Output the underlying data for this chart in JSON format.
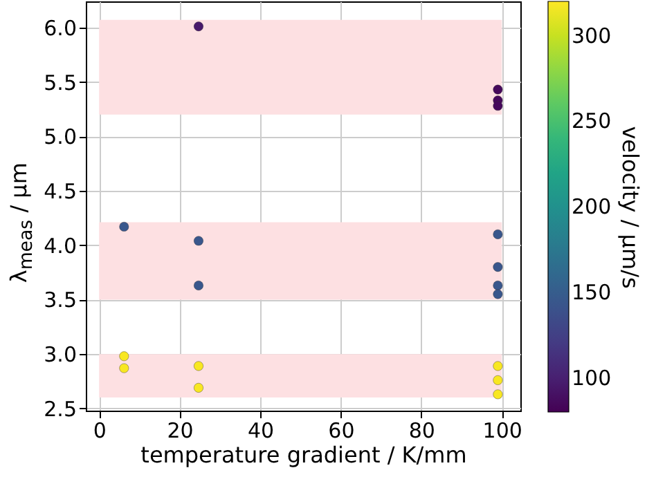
{
  "chart_data": {
    "type": "scatter",
    "xlabel": "temperature gradient / K/mm",
    "ylabel": "λ$_{meas}$ / µm",
    "clabel": "velocity / µm/s",
    "x": [
      24.7,
      99,
      99,
      99,
      6.2,
      24.7,
      99,
      24.7,
      99,
      99,
      99,
      6.2,
      6.2,
      24.7,
      24.7,
      99,
      99,
      99
    ],
    "values": [
      6.01,
      5.43,
      5.33,
      5.28,
      4.17,
      4.04,
      4.1,
      3.63,
      3.8,
      3.63,
      3.55,
      2.98,
      2.87,
      2.89,
      2.69,
      2.89,
      2.76,
      2.63
    ],
    "cvalues": [
      95,
      85,
      85,
      85,
      145,
      145,
      145,
      145,
      145,
      145,
      145,
      318,
      318,
      318,
      318,
      318,
      318,
      318
    ],
    "clim": [
      80,
      320
    ],
    "cticks": [
      100,
      150,
      200,
      250,
      300
    ],
    "xlim": [
      -3.3,
      104.6
    ],
    "xticks": [
      0,
      20,
      40,
      60,
      80,
      100
    ],
    "ylim": [
      2.48,
      6.24
    ],
    "yticks": [
      2.5,
      {
        "value": 3,
        "label": "3.0"
      },
      3.5,
      {
        "value": 4,
        "label": "4.0"
      },
      4.5,
      {
        "value": 5,
        "label": "5.0"
      },
      5.5,
      {
        "value": 6,
        "label": "6.0"
      }
    ],
    "bands": [
      {
        "axis": "y",
        "from": 5.2,
        "to": 6.07,
        "color": "#fde0e2"
      },
      {
        "axis": "y",
        "from": 3.5,
        "to": 4.21,
        "color": "#fde0e2"
      },
      {
        "axis": "y",
        "from": 2.6,
        "to": 3.0,
        "color": "#fde0e2"
      }
    ],
    "grid": true,
    "marker": "circle"
  }
}
